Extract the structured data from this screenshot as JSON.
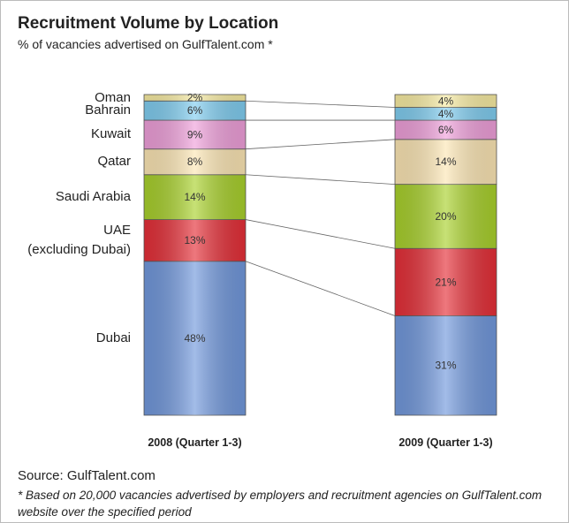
{
  "chart_data": {
    "type": "stacked_bar",
    "title": "Recruitment Volume by Location",
    "subtitle": "% of vacancies advertised on GulfTalent.com *",
    "source": "Source: GulfTalent.com",
    "footnote": "* Based on 20,000 vacancies advertised by employers and recruitment agencies on GulfTalent.com website over the specified period",
    "categories": [
      "2008 (Quarter 1-3)",
      "2009 (Quarter 1-3)"
    ],
    "ylim": [
      0,
      100
    ],
    "series": [
      {
        "name": "Dubai",
        "color": "#7198dc",
        "values": [
          48,
          31
        ],
        "value_labels": [
          "48%",
          "31%"
        ]
      },
      {
        "name": "UAE\n(excluding Dubai)",
        "color": "#e52f38",
        "values": [
          13,
          21
        ],
        "value_labels": [
          "13%",
          "21%"
        ]
      },
      {
        "name": "Saudi Arabia",
        "color": "#a9d12c",
        "values": [
          14,
          20
        ],
        "value_labels": [
          "14%",
          "20%"
        ]
      },
      {
        "name": "Qatar",
        "color": "#fce6b4",
        "values": [
          8,
          14
        ],
        "value_labels": [
          "8%",
          "14%"
        ]
      },
      {
        "name": "Kuwait",
        "color": "#ef9fda",
        "values": [
          9,
          6
        ],
        "value_labels": [
          "9%",
          "6%"
        ]
      },
      {
        "name": "Bahrain",
        "color": "#80cdf0",
        "values": [
          6,
          4
        ],
        "value_labels": [
          "6%",
          "4%"
        ]
      },
      {
        "name": "Oman",
        "color": "#f8eca2",
        "values": [
          2,
          4
        ],
        "value_labels": [
          "2%",
          "4%"
        ]
      }
    ]
  }
}
